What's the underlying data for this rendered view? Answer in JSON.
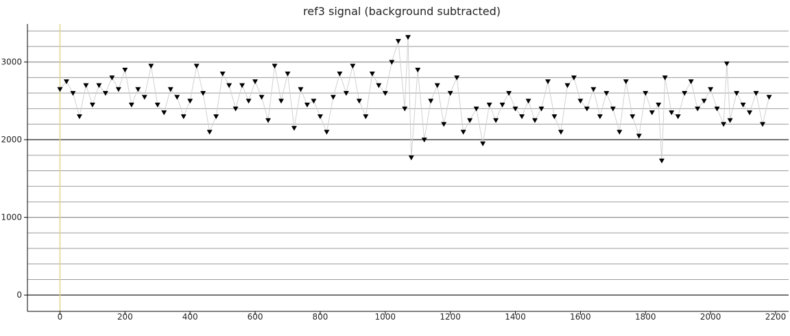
{
  "chart_data": {
    "type": "line",
    "title": "ref3 signal (background subtracted)",
    "x": [
      0,
      20,
      40,
      60,
      80,
      100,
      120,
      140,
      160,
      180,
      200,
      220,
      240,
      260,
      280,
      300,
      320,
      340,
      360,
      380,
      400,
      420,
      440,
      460,
      480,
      500,
      520,
      540,
      560,
      580,
      600,
      620,
      640,
      660,
      680,
      700,
      720,
      740,
      760,
      780,
      800,
      820,
      840,
      860,
      880,
      900,
      920,
      940,
      960,
      980,
      1000,
      1020,
      1040,
      1060,
      1070,
      1080,
      1100,
      1120,
      1140,
      1160,
      1180,
      1200,
      1220,
      1240,
      1260,
      1280,
      1300,
      1320,
      1340,
      1360,
      1380,
      1400,
      1420,
      1440,
      1460,
      1480,
      1500,
      1520,
      1540,
      1560,
      1580,
      1600,
      1620,
      1640,
      1660,
      1680,
      1700,
      1720,
      1740,
      1760,
      1780,
      1800,
      1820,
      1840,
      1850,
      1860,
      1880,
      1900,
      1920,
      1940,
      1960,
      1980,
      2000,
      2020,
      2040,
      2050,
      2060,
      2080,
      2100,
      2120,
      2140,
      2160,
      2180
    ],
    "series": [
      {
        "color": "#000000",
        "values": [
          2650,
          2750,
          2600,
          2300,
          2700,
          2450,
          2700,
          2600,
          2800,
          2650,
          2900,
          2450,
          2650,
          2550,
          2950,
          2450,
          2350,
          2650,
          2550,
          2300,
          2500,
          2950,
          2600,
          2100,
          2300,
          2850,
          2700,
          2400,
          2700,
          2500,
          2750,
          2550,
          2250,
          2950,
          2500,
          2850,
          2150,
          2650,
          2450,
          2500,
          2300,
          2100,
          2550,
          2850,
          2600,
          2950,
          2500,
          2300,
          2850,
          2700,
          2600,
          3000,
          3270,
          2400,
          3320,
          1770,
          2900,
          2000,
          2500,
          2700,
          2200,
          2600,
          2800,
          2100,
          2250,
          2400,
          1950,
          2450,
          2250,
          2450,
          2600,
          2400,
          2300,
          2500,
          2250,
          2400,
          2750,
          2300,
          2100,
          2700,
          2800,
          2500,
          2400,
          2650,
          2300,
          2600,
          2400,
          2100,
          2750,
          2300,
          2050,
          2600,
          2350,
          2450,
          1730,
          2800,
          2350,
          2300,
          2600,
          2750,
          2400,
          2500,
          2650,
          2400,
          2200,
          2980,
          2250,
          2600,
          2450,
          2350,
          2600,
          2200,
          2550
        ]
      }
    ],
    "line_color": "#d0d0d0",
    "xlim": [
      -100,
      2240
    ],
    "ylim": [
      -210,
      3490
    ],
    "xticks": [
      0,
      200,
      400,
      600,
      800,
      1000,
      1200,
      1400,
      1600,
      1800,
      2000,
      2200
    ],
    "yticks": [
      0,
      1000,
      2000,
      3000
    ],
    "ygrid": [
      200,
      400,
      600,
      800,
      1000,
      1200,
      1400,
      1600,
      1800,
      2200,
      2400,
      2600,
      2800,
      3000,
      3200,
      3400
    ],
    "dark_lines": [
      0,
      2000
    ],
    "vline": 0,
    "vline_color": "#e0d48a"
  }
}
